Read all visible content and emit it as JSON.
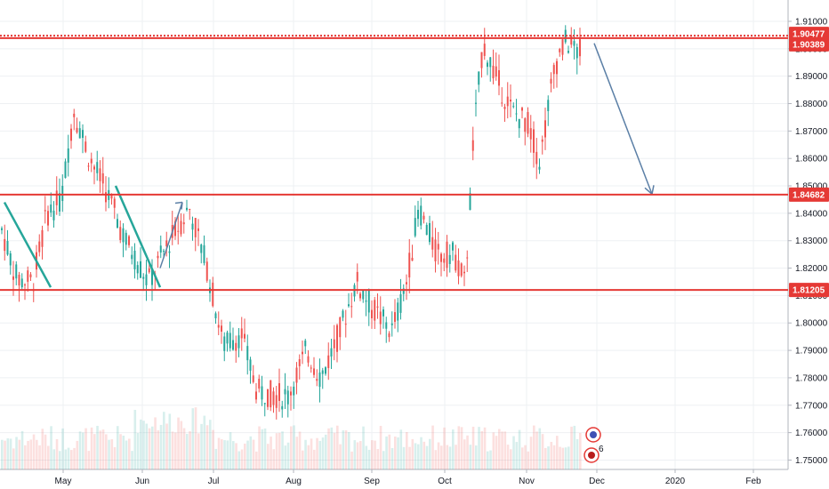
{
  "chart_data": {
    "type": "candlestick",
    "instrument_note": "",
    "x_ticks": [
      "May",
      "Jun",
      "Jul",
      "Aug",
      "Sep",
      "Oct",
      "Nov",
      "Dec",
      "2020",
      "Feb"
    ],
    "y_ticks": [
      "1.91000",
      "1.90000",
      "1.89000",
      "1.88000",
      "1.87000",
      "1.86000",
      "1.85000",
      "1.84000",
      "1.83000",
      "1.82000",
      "1.81000",
      "1.80000",
      "1.79000",
      "1.78000",
      "1.77000",
      "1.76000",
      "1.75000"
    ],
    "ylim": [
      1.7475,
      1.9135
    ],
    "grid": true,
    "levels": [
      {
        "label": "1.90477",
        "value": 1.90477,
        "style": "dotted",
        "color": "#e53935"
      },
      {
        "label": "1.90389",
        "value": 1.90389,
        "style": "solid",
        "color": "#e53935"
      },
      {
        "label": "1.84682",
        "value": 1.84682,
        "style": "solid",
        "color": "#e53935"
      },
      {
        "label": "1.81205",
        "value": 1.81205,
        "style": "solid",
        "color": "#e53935"
      }
    ],
    "key_points": {
      "apr_high": 1.845,
      "apr_low": 1.81,
      "may_high": 1.868,
      "jun_low": 1.813,
      "jul_high": 1.842,
      "aug_low": 1.771,
      "sep_high": 1.846,
      "oct_low": 1.811,
      "oct_high": 1.909,
      "nov_low": 1.856,
      "nov_high": 1.908,
      "last_close": 1.899
    },
    "projection": {
      "from": "Nov",
      "from_value": 1.902,
      "to": "Dec",
      "to_value": 1.847,
      "color": "#5b7fa6"
    },
    "events": [
      {
        "label": "6"
      }
    ],
    "colors": {
      "up": "#26a69a",
      "down": "#ef5350",
      "level": "#e53935",
      "trendline": "#26a69a",
      "arrow": "#5b7fa6"
    }
  }
}
